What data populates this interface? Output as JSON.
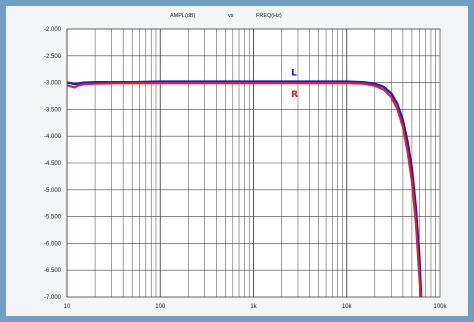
{
  "chart_data": {
    "type": "line",
    "title_left": "AMPL(dB)",
    "title_mid": "vs",
    "title_right": "FREQ(Hz)",
    "x_scale": "log",
    "xlim": [
      10,
      100000
    ],
    "ylim": [
      -7.0,
      -2.0
    ],
    "x_tick_labels": [
      {
        "value": 10,
        "label": "10"
      },
      {
        "value": 100,
        "label": "100"
      },
      {
        "value": 1000,
        "label": "1k"
      },
      {
        "value": 10000,
        "label": "10k"
      },
      {
        "value": 100000,
        "label": "100k"
      }
    ],
    "y_tick_labels": [
      {
        "value": -2.0,
        "label": "-2.000"
      },
      {
        "value": -2.5,
        "label": "-2.500"
      },
      {
        "value": -3.0,
        "label": "-3.000"
      },
      {
        "value": -3.5,
        "label": "-3.500"
      },
      {
        "value": -4.0,
        "label": "-4.000"
      },
      {
        "value": -4.5,
        "label": "-4.500"
      },
      {
        "value": -5.0,
        "label": "-5.000"
      },
      {
        "value": -5.5,
        "label": "-5.500"
      },
      {
        "value": -6.0,
        "label": "-6.000"
      },
      {
        "value": -6.5,
        "label": "-6.500"
      },
      {
        "value": -7.0,
        "label": "-7.000"
      }
    ],
    "grid": true,
    "series": [
      {
        "name": "L",
        "color": "#1a1ad0",
        "points": [
          [
            10,
            -3.0
          ],
          [
            11,
            -3.01
          ],
          [
            12,
            -3.03
          ],
          [
            13,
            -3.02
          ],
          [
            15,
            -3.0
          ],
          [
            20,
            -2.99
          ],
          [
            50,
            -2.99
          ],
          [
            100,
            -2.98
          ],
          [
            300,
            -2.98
          ],
          [
            1000,
            -2.98
          ],
          [
            5000,
            -2.98
          ],
          [
            10000,
            -2.98
          ],
          [
            15000,
            -2.99
          ],
          [
            20000,
            -3.02
          ],
          [
            25000,
            -3.08
          ],
          [
            30000,
            -3.2
          ],
          [
            35000,
            -3.4
          ],
          [
            40000,
            -3.7
          ],
          [
            45000,
            -4.1
          ],
          [
            50000,
            -4.6
          ],
          [
            55000,
            -5.3
          ],
          [
            60000,
            -6.2
          ],
          [
            63000,
            -7.0
          ]
        ]
      },
      {
        "name": "R",
        "color": "#e0202a",
        "points": [
          [
            10,
            -3.05
          ],
          [
            11,
            -3.07
          ],
          [
            12,
            -3.09
          ],
          [
            13,
            -3.06
          ],
          [
            15,
            -3.03
          ],
          [
            20,
            -3.02
          ],
          [
            50,
            -3.01
          ],
          [
            100,
            -3.01
          ],
          [
            300,
            -3.01
          ],
          [
            1000,
            -3.01
          ],
          [
            5000,
            -3.01
          ],
          [
            10000,
            -3.01
          ],
          [
            15000,
            -3.02
          ],
          [
            20000,
            -3.06
          ],
          [
            25000,
            -3.13
          ],
          [
            30000,
            -3.27
          ],
          [
            35000,
            -3.5
          ],
          [
            40000,
            -3.83
          ],
          [
            45000,
            -4.3
          ],
          [
            50000,
            -4.85
          ],
          [
            55000,
            -5.6
          ],
          [
            60000,
            -6.6
          ],
          [
            62000,
            -7.0
          ]
        ]
      }
    ],
    "annotations": [
      {
        "text": "L",
        "series": "L"
      },
      {
        "text": "R",
        "series": "R"
      }
    ]
  }
}
